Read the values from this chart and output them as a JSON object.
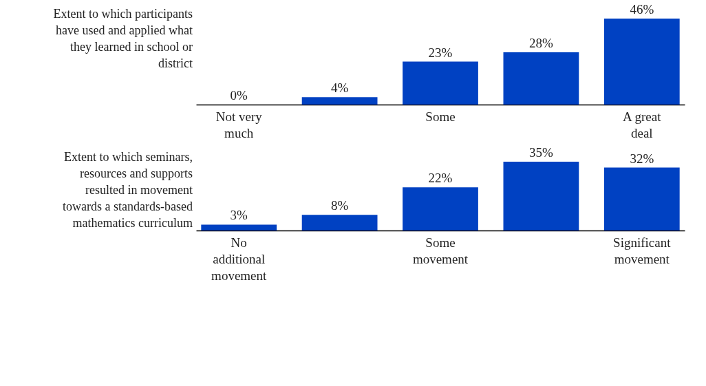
{
  "chart_data": [
    {
      "type": "bar",
      "title": "Extent to which participants have used and applied what they learned  in school or district",
      "categories": [
        "Not very much",
        null,
        "Some",
        null,
        "A great deal"
      ],
      "values": [
        0,
        4,
        23,
        28,
        46
      ],
      "value_labels": [
        "0%",
        "4%",
        "23%",
        "28%",
        "46%"
      ],
      "color": "#0041c2",
      "tick_labels": "x"
    },
    {
      "type": "bar",
      "title": "Extent to which seminars, resources and supports resulted in movement towards a standards-based  mathematics curriculum",
      "categories": [
        "No additional movement",
        null,
        "Some movement",
        null,
        "Significant movement"
      ],
      "values": [
        3,
        8,
        22,
        35,
        32
      ],
      "value_labels": [
        "3%",
        "8%",
        "22%",
        "35%",
        "32%"
      ],
      "color": "#0041c2",
      "tick_labels": "x"
    }
  ]
}
